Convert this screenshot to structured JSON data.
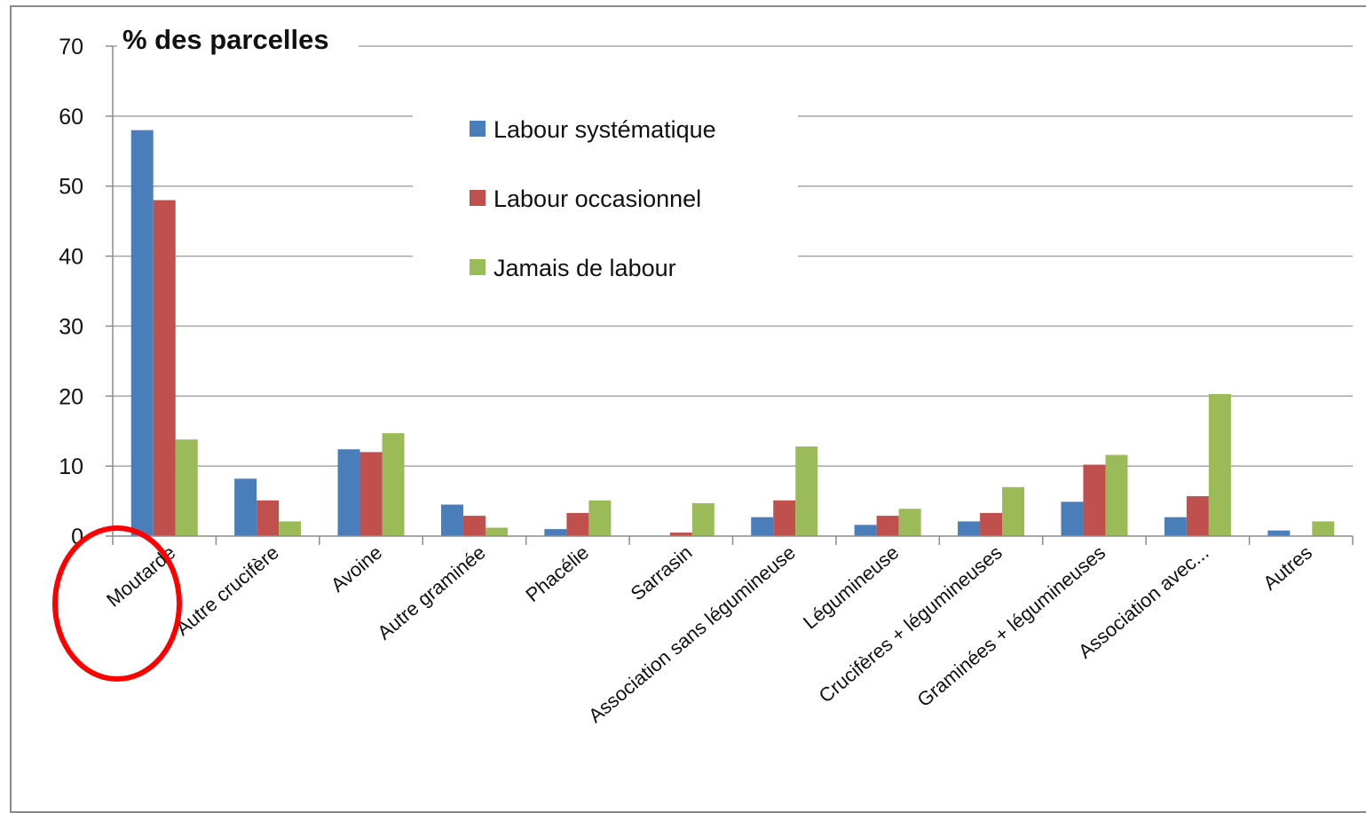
{
  "chart_data": {
    "type": "bar",
    "title": "",
    "ylabel": "% des parcelles",
    "xlabel": "",
    "ylim": [
      0,
      70
    ],
    "yticks": [
      0,
      10,
      20,
      30,
      40,
      50,
      60,
      70
    ],
    "grid": true,
    "legend_position": "top-center",
    "categories": [
      "Moutarde",
      "Autre crucifère",
      "Avoine",
      "Autre graminée",
      "Phacélie",
      "Sarrasin",
      "Association sans légumineuse",
      "Légumineuse",
      "Crucifères + légumineuses",
      "Graminées + légumineuses",
      "Association avec...",
      "Autres"
    ],
    "series": [
      {
        "name": "Labour systématique",
        "color": "#4a7ebb",
        "values": [
          58,
          8.2,
          12.4,
          4.5,
          1.0,
          0,
          2.7,
          1.6,
          2.1,
          4.9,
          2.7,
          0.8
        ]
      },
      {
        "name": "Labour occasionnel",
        "color": "#c0504d",
        "values": [
          48,
          5.1,
          12.0,
          2.9,
          3.3,
          0.5,
          5.1,
          2.9,
          3.3,
          10.2,
          5.7,
          0
        ]
      },
      {
        "name": "Jamais de labour",
        "color": "#9bbb59",
        "values": [
          13.8,
          2.1,
          14.7,
          1.2,
          5.1,
          4.7,
          12.8,
          3.9,
          7.0,
          11.6,
          20.3,
          2.1
        ]
      }
    ],
    "annotation": {
      "type": "circle",
      "color": "#ff0000",
      "target_category": "Moutarde"
    }
  }
}
